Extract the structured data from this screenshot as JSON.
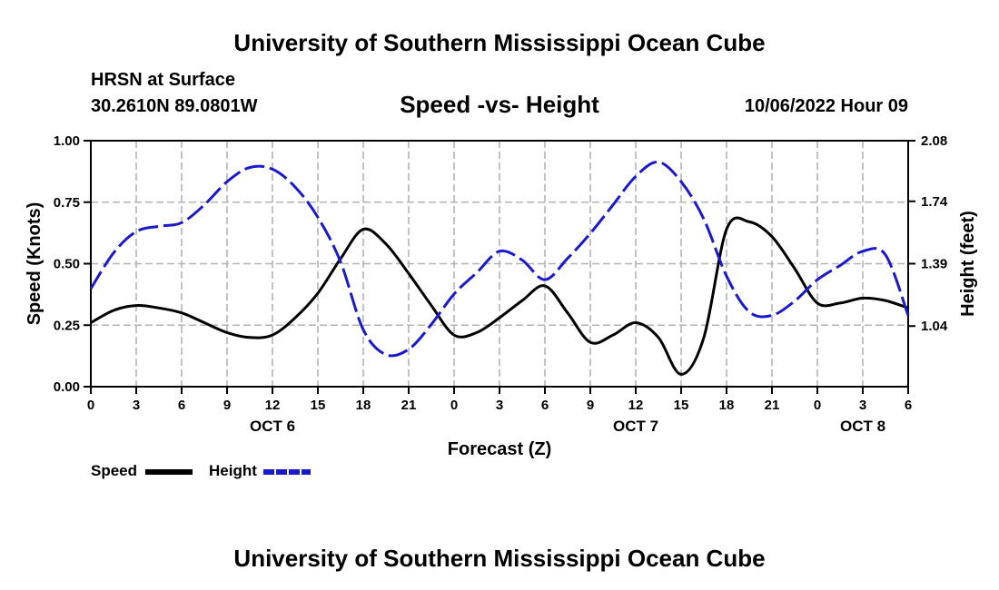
{
  "page": {
    "title_top": "University of Southern Mississippi Ocean Cube",
    "title_bottom": "University of Southern Mississippi Ocean Cube",
    "station": "HRSN at Surface",
    "coords": "30.2610N  89.0801W",
    "chart_title": "Speed -vs- Height",
    "timestamp": "10/06/2022 Hour 09"
  },
  "legend": {
    "speed_label": "Speed",
    "height_label": "Height"
  },
  "colors": {
    "speed": "#000000",
    "height": "#1a1acc",
    "grid": "#b4b4b4"
  },
  "chart_data": {
    "type": "line",
    "title": "Speed -vs- Height",
    "xlabel": "Forecast (Z)",
    "ylabel": "Speed (Knots)",
    "y2label": "Height (feet)",
    "xlim": [
      0,
      54
    ],
    "ylim": [
      0,
      1.0
    ],
    "y2lim": [
      0.7,
      2.08
    ],
    "grid": true,
    "x_tick_labels": [
      "0",
      "3",
      "6",
      "9",
      "12",
      "15",
      "18",
      "21",
      "0",
      "3",
      "6",
      "9",
      "12",
      "15",
      "18",
      "21",
      "0",
      "3",
      "6"
    ],
    "y_tick_labels": [
      "0.00",
      "0.25",
      "0.50",
      "0.75",
      "1.00"
    ],
    "y2_tick_labels": [
      "1.04",
      "1.39",
      "1.74",
      "2.08"
    ],
    "day_labels": [
      {
        "label": "OCT 6",
        "hour": 12
      },
      {
        "label": "OCT 7",
        "hour": 36
      },
      {
        "label": "OCT 8",
        "hour": 51
      }
    ],
    "series": [
      {
        "name": "Speed",
        "axis": "left",
        "style": "solid",
        "x": [
          0,
          1.5,
          3,
          4.5,
          6,
          7.5,
          9,
          10.5,
          12,
          13.5,
          15,
          16.5,
          18,
          19.5,
          21,
          22.5,
          24,
          25.5,
          27,
          28.5,
          30,
          31.5,
          33,
          34.5,
          36,
          37.5,
          39,
          40.5,
          42,
          43.5,
          45,
          46.5,
          48,
          49.5,
          51,
          52.5,
          54
        ],
        "values": [
          0.26,
          0.31,
          0.33,
          0.32,
          0.3,
          0.26,
          0.22,
          0.2,
          0.21,
          0.28,
          0.38,
          0.52,
          0.64,
          0.58,
          0.46,
          0.33,
          0.21,
          0.22,
          0.28,
          0.35,
          0.41,
          0.3,
          0.18,
          0.21,
          0.26,
          0.2,
          0.05,
          0.2,
          0.64,
          0.67,
          0.61,
          0.48,
          0.34,
          0.34,
          0.36,
          0.35,
          0.32
        ]
      },
      {
        "name": "Height",
        "axis": "right",
        "style": "dashed",
        "x": [
          0,
          1.5,
          3,
          4.5,
          6,
          7.5,
          9,
          10.5,
          12,
          13.5,
          15,
          16.5,
          18,
          19.5,
          21,
          22.5,
          24,
          25.5,
          27,
          28.5,
          30,
          31.5,
          33,
          34.5,
          36,
          37.5,
          39,
          40.5,
          42,
          43.5,
          45,
          46.5,
          48,
          49.5,
          51,
          52.5,
          54
        ],
        "values": [
          1.25,
          1.45,
          1.57,
          1.6,
          1.62,
          1.72,
          1.85,
          1.93,
          1.92,
          1.82,
          1.65,
          1.4,
          1.02,
          0.88,
          0.91,
          1.05,
          1.22,
          1.34,
          1.46,
          1.41,
          1.3,
          1.42,
          1.56,
          1.72,
          1.88,
          1.96,
          1.85,
          1.64,
          1.32,
          1.12,
          1.1,
          1.18,
          1.3,
          1.38,
          1.46,
          1.44,
          1.1
        ]
      }
    ]
  }
}
